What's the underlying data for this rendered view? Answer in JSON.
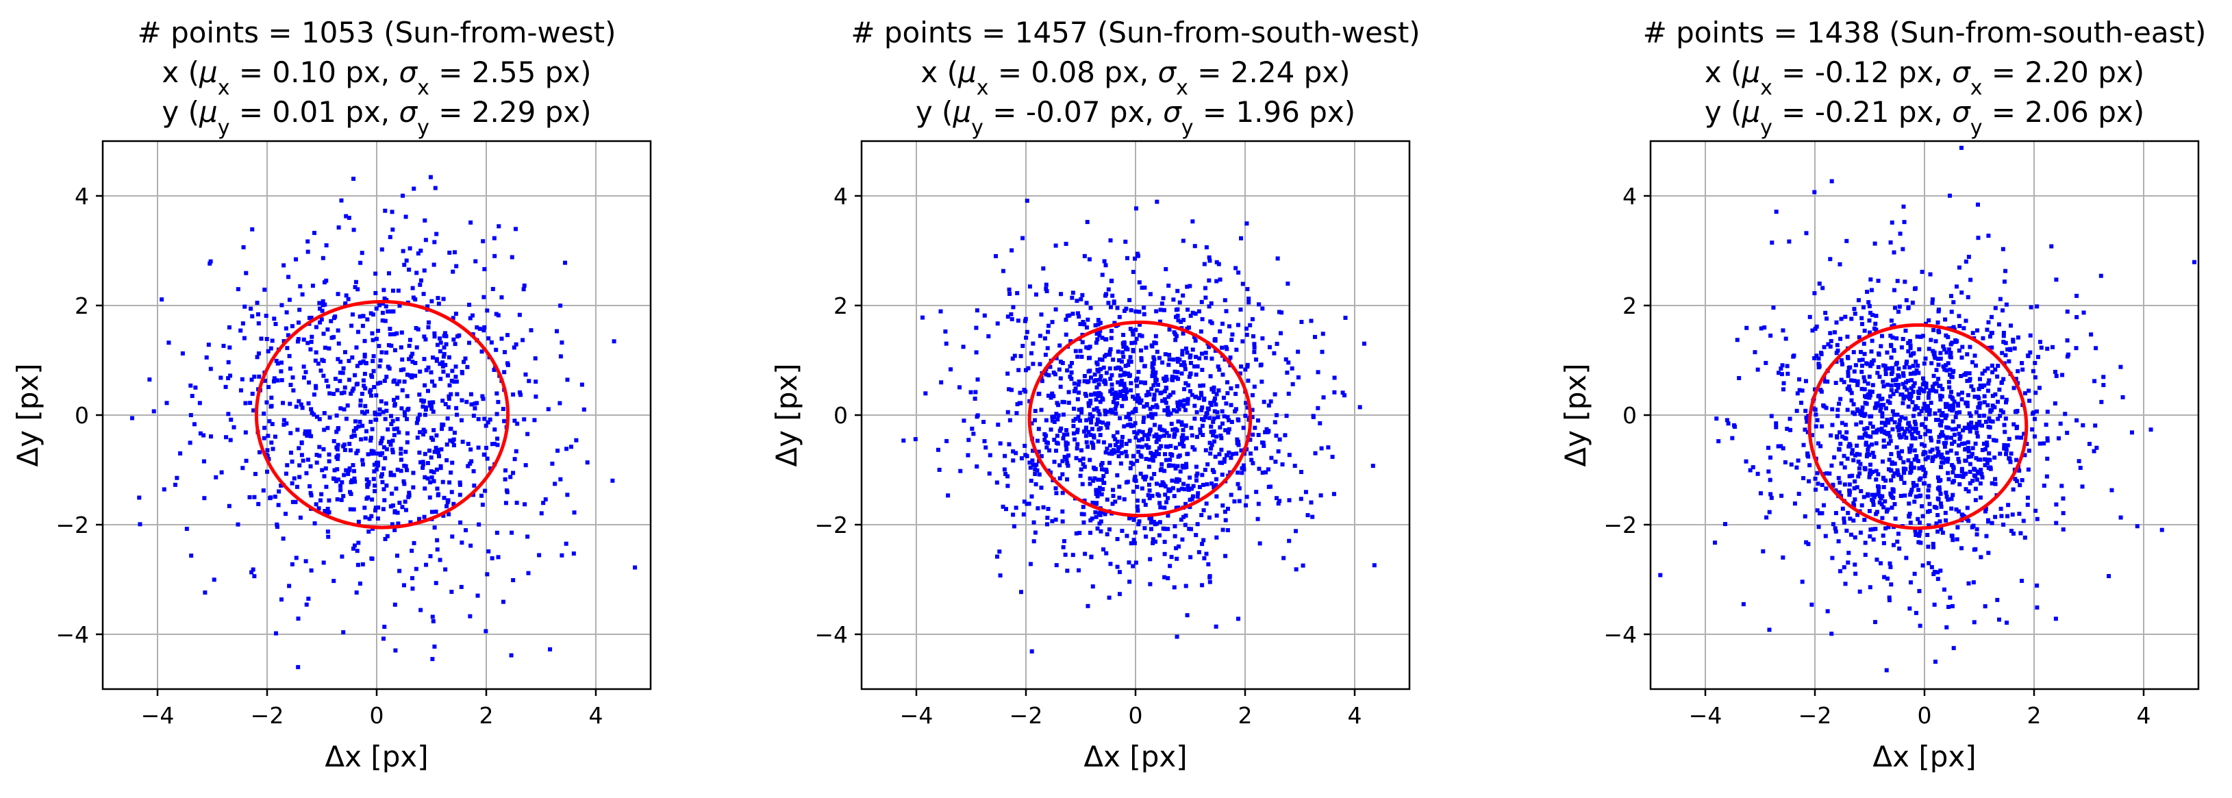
{
  "chart_data": [
    {
      "type": "scatter",
      "title_lines": [
        "# points = 1053 (Sun-from-west)",
        "x (μ<sub>x</sub> = 0.10 px, σ<sub>x</sub> = 2.55 px)",
        "y (μ<sub>y</sub> = 0.01 px, σ<sub>y</sub> = 2.29 px)"
      ],
      "n_points": 1053,
      "mu_x": 0.1,
      "sigma_x": 2.55,
      "mu_y": 0.01,
      "sigma_y": 2.29,
      "xlabel": "Δx [px]",
      "ylabel": "Δy [px]",
      "xlim": [
        -5,
        5
      ],
      "ylim": [
        -5,
        5
      ],
      "xticks": [
        -4,
        -2,
        0,
        2,
        4
      ],
      "yticks": [
        -4,
        -2,
        0,
        2,
        4
      ],
      "tick_labels": [
        "−4",
        "−2",
        "0",
        "2",
        "4"
      ],
      "grid": true,
      "point_color": "#0000ff",
      "ellipse_color": "#ff0000",
      "seed": 11
    },
    {
      "type": "scatter",
      "title_lines": [
        "# points = 1457 (Sun-from-south-west)",
        "x (μ<sub>x</sub> = 0.08 px, σ<sub>x</sub> = 2.24 px)",
        "y (μ<sub>y</sub> = -0.07 px, σ<sub>y</sub> = 1.96 px)"
      ],
      "n_points": 1457,
      "mu_x": 0.08,
      "sigma_x": 2.24,
      "mu_y": -0.07,
      "sigma_y": 1.96,
      "xlabel": "Δx [px]",
      "ylabel": "Δy [px]",
      "xlim": [
        -5,
        5
      ],
      "ylim": [
        -5,
        5
      ],
      "xticks": [
        -4,
        -2,
        0,
        2,
        4
      ],
      "yticks": [
        -4,
        -2,
        0,
        2,
        4
      ],
      "tick_labels": [
        "−4",
        "−2",
        "0",
        "2",
        "4"
      ],
      "grid": true,
      "point_color": "#0000ff",
      "ellipse_color": "#ff0000",
      "seed": 23
    },
    {
      "type": "scatter",
      "title_lines": [
        "# points = 1438 (Sun-from-south-east)",
        "x (μ<sub>x</sub> = -0.12 px, σ<sub>x</sub> = 2.20 px)",
        "y (μ<sub>y</sub> = -0.21 px, σ<sub>y</sub> = 2.06 px)"
      ],
      "n_points": 1438,
      "mu_x": -0.12,
      "sigma_x": 2.2,
      "mu_y": -0.21,
      "sigma_y": 2.06,
      "xlabel": "Δx [px]",
      "ylabel": "Δy [px]",
      "xlim": [
        -5,
        5
      ],
      "ylim": [
        -5,
        5
      ],
      "xticks": [
        -4,
        -2,
        0,
        2,
        4
      ],
      "yticks": [
        -4,
        -2,
        0,
        2,
        4
      ],
      "tick_labels": [
        "−4",
        "−2",
        "0",
        "2",
        "4"
      ],
      "grid": true,
      "point_color": "#0000ff",
      "ellipse_color": "#ff0000",
      "seed": 37
    }
  ]
}
